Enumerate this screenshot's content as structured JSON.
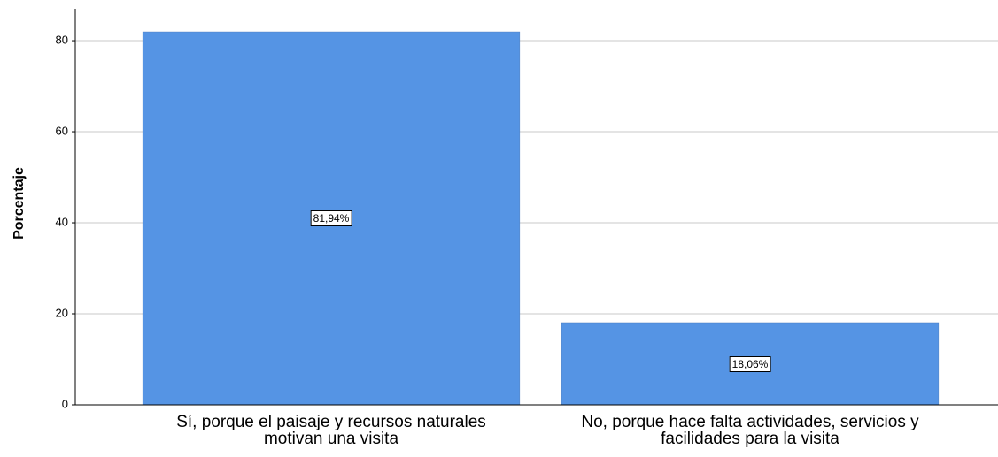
{
  "chart_data": {
    "type": "bar",
    "ylabel": "Porcentaje",
    "categories": [
      "Sí, porque el paisaje y recursos naturales\nmotivan una visita",
      "No, porque hace falta actividades, servicios y\nfacilidades para la visita"
    ],
    "values": [
      81.94,
      18.06
    ],
    "value_labels": [
      "81,94%",
      "18,06%"
    ],
    "color": "#5594e4",
    "ylim": [
      0,
      87
    ],
    "yticks": [
      0,
      20,
      40,
      60,
      80
    ],
    "grid": true
  }
}
